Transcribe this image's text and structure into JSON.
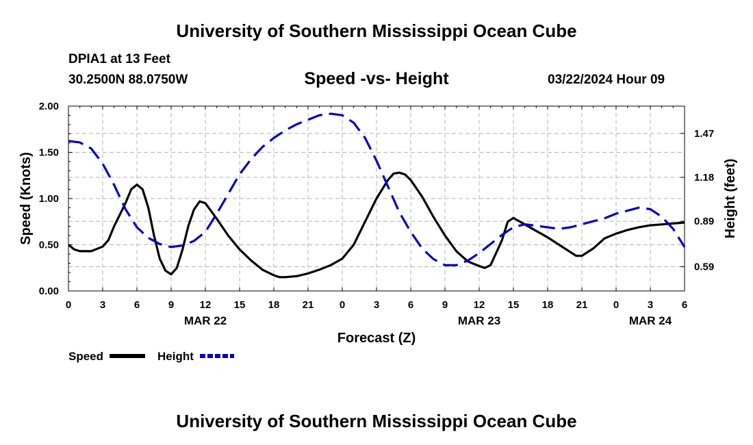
{
  "header": {
    "title": "University of Southern Mississippi Ocean Cube",
    "station": "DPIA1 at 13 Feet",
    "coordinates": "30.2500N  88.0750W",
    "datetime": "03/22/2024 Hour 09"
  },
  "footer": {
    "title": "University of Southern Mississippi Ocean Cube"
  },
  "chart_data": {
    "type": "line",
    "title": "Speed -vs- Height",
    "xlabel": "Forecast (Z)",
    "ylabel": "Speed (Knots)",
    "y2label": "Height (feet)",
    "xlim": [
      0,
      54
    ],
    "x_ticks": [
      0,
      3,
      6,
      9,
      12,
      15,
      18,
      21,
      24,
      27,
      30,
      33,
      36,
      39,
      42,
      45,
      48,
      51,
      54
    ],
    "x_tick_labels": [
      "0",
      "3",
      "6",
      "9",
      "12",
      "15",
      "18",
      "21",
      "0",
      "3",
      "6",
      "9",
      "12",
      "15",
      "18",
      "21",
      "0",
      "3",
      "6"
    ],
    "date_labels": [
      {
        "x": 12,
        "label": "MAR 22"
      },
      {
        "x": 36,
        "label": "MAR 23"
      },
      {
        "x": 51,
        "label": "MAR 24"
      }
    ],
    "ylim": [
      0,
      2
    ],
    "y_ticks": [
      0,
      0.5,
      1,
      1.5,
      2
    ],
    "y_tick_labels": [
      "0.00",
      "0.50",
      "1.00",
      "1.50",
      "2.00"
    ],
    "y2lim": [
      0.43,
      1.65
    ],
    "y2_ticks": [
      0.59,
      0.89,
      1.18,
      1.47
    ],
    "y2_tick_labels": [
      "0.59",
      "0.89",
      "1.18",
      "1.47"
    ],
    "grid": true,
    "legend_position": "bottom-left",
    "colors": {
      "speed": "#000000",
      "height": "#0000cc",
      "grid": "#b4b4b4"
    },
    "series": [
      {
        "name": "Speed",
        "axis": "left",
        "color": "#000000",
        "style": "solid",
        "x": [
          0,
          0.5,
          1,
          2,
          3,
          3.5,
          4,
          5,
          5.5,
          6,
          6.5,
          7,
          7.5,
          8,
          8.5,
          9,
          9.5,
          10,
          10.5,
          11,
          11.5,
          12,
          13,
          14,
          15,
          16,
          17,
          18,
          18.5,
          19,
          20,
          21,
          22,
          23,
          24,
          25,
          26,
          27,
          28,
          28.5,
          29,
          29.5,
          30,
          31,
          32,
          33,
          34,
          35,
          36,
          36.5,
          37,
          38,
          38.5,
          39,
          40,
          41,
          42,
          43,
          44,
          44.5,
          45,
          46,
          47,
          48,
          49,
          50,
          51,
          52,
          53,
          54
        ],
        "values": [
          0.5,
          0.45,
          0.43,
          0.43,
          0.48,
          0.55,
          0.7,
          0.95,
          1.1,
          1.15,
          1.1,
          0.9,
          0.6,
          0.35,
          0.22,
          0.18,
          0.25,
          0.45,
          0.7,
          0.88,
          0.97,
          0.95,
          0.78,
          0.6,
          0.45,
          0.33,
          0.23,
          0.17,
          0.15,
          0.15,
          0.16,
          0.19,
          0.23,
          0.28,
          0.35,
          0.5,
          0.75,
          1.0,
          1.2,
          1.27,
          1.28,
          1.26,
          1.2,
          1.02,
          0.8,
          0.6,
          0.43,
          0.32,
          0.27,
          0.25,
          0.28,
          0.55,
          0.75,
          0.79,
          0.72,
          0.65,
          0.58,
          0.5,
          0.42,
          0.38,
          0.38,
          0.46,
          0.57,
          0.62,
          0.66,
          0.69,
          0.71,
          0.72,
          0.73,
          0.74
        ]
      },
      {
        "name": "Height",
        "axis": "right",
        "color": "#0000cc",
        "style": "dashed",
        "x": [
          0,
          1,
          2,
          3,
          4,
          5,
          6,
          7,
          8,
          9,
          10,
          11,
          12,
          13,
          14,
          15,
          16,
          17,
          18,
          19,
          20,
          21,
          22,
          23,
          24,
          25,
          26,
          27,
          28,
          29,
          30,
          31,
          32,
          33,
          34,
          35,
          36,
          37,
          38,
          39,
          40,
          41,
          42,
          43,
          44,
          45,
          46,
          47,
          48,
          49,
          50,
          51,
          52,
          53,
          54
        ],
        "values": [
          1.42,
          1.41,
          1.37,
          1.27,
          1.13,
          0.97,
          0.85,
          0.78,
          0.74,
          0.72,
          0.73,
          0.76,
          0.82,
          0.94,
          1.07,
          1.2,
          1.3,
          1.38,
          1.44,
          1.49,
          1.53,
          1.56,
          1.59,
          1.6,
          1.59,
          1.54,
          1.44,
          1.29,
          1.12,
          0.95,
          0.82,
          0.71,
          0.64,
          0.6,
          0.6,
          0.63,
          0.68,
          0.74,
          0.8,
          0.85,
          0.87,
          0.86,
          0.85,
          0.84,
          0.85,
          0.87,
          0.89,
          0.91,
          0.94,
          0.96,
          0.98,
          0.97,
          0.92,
          0.84,
          0.72
        ]
      }
    ]
  }
}
